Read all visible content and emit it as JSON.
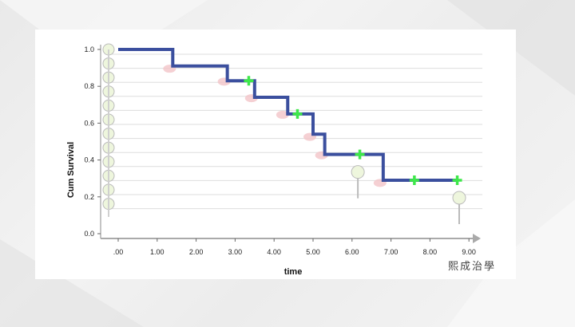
{
  "chart_data": {
    "type": "line",
    "subtype": "kaplan-meier step",
    "title": "",
    "xlabel": "time",
    "ylabel": "Cum Survival",
    "xlim": [
      -0.5,
      9.2
    ],
    "ylim": [
      0,
      1.0
    ],
    "x_ticks": [
      ".00",
      "1.00",
      "2.00",
      "3.00",
      "4.00",
      "5.00",
      "6.00",
      "7.00",
      "8.00",
      "9.00"
    ],
    "y_ticks": [
      "0.0",
      "0.2",
      "0.4",
      "0.6",
      "0.8",
      "1.0"
    ],
    "grid": false,
    "legend": "none",
    "series": [
      {
        "color": "#3b4f9e",
        "steps": [
          {
            "x": 0.0,
            "y": 1.0
          },
          {
            "x": 1.4,
            "y": 0.91
          },
          {
            "x": 2.8,
            "y": 0.83
          },
          {
            "x": 3.5,
            "y": 0.74
          },
          {
            "x": 4.35,
            "y": 0.65
          },
          {
            "x": 5.0,
            "y": 0.54
          },
          {
            "x": 5.3,
            "y": 0.43
          },
          {
            "x": 6.8,
            "y": 0.29
          }
        ],
        "x_end": 8.7
      }
    ],
    "censored": [
      {
        "x": 3.35,
        "y": 0.83
      },
      {
        "x": 4.6,
        "y": 0.65
      },
      {
        "x": 6.2,
        "y": 0.43
      },
      {
        "x": 7.6,
        "y": 0.29
      },
      {
        "x": 8.7,
        "y": 0.29
      }
    ],
    "censor_color": "#3ee84a"
  },
  "watermark": "熙成治學"
}
